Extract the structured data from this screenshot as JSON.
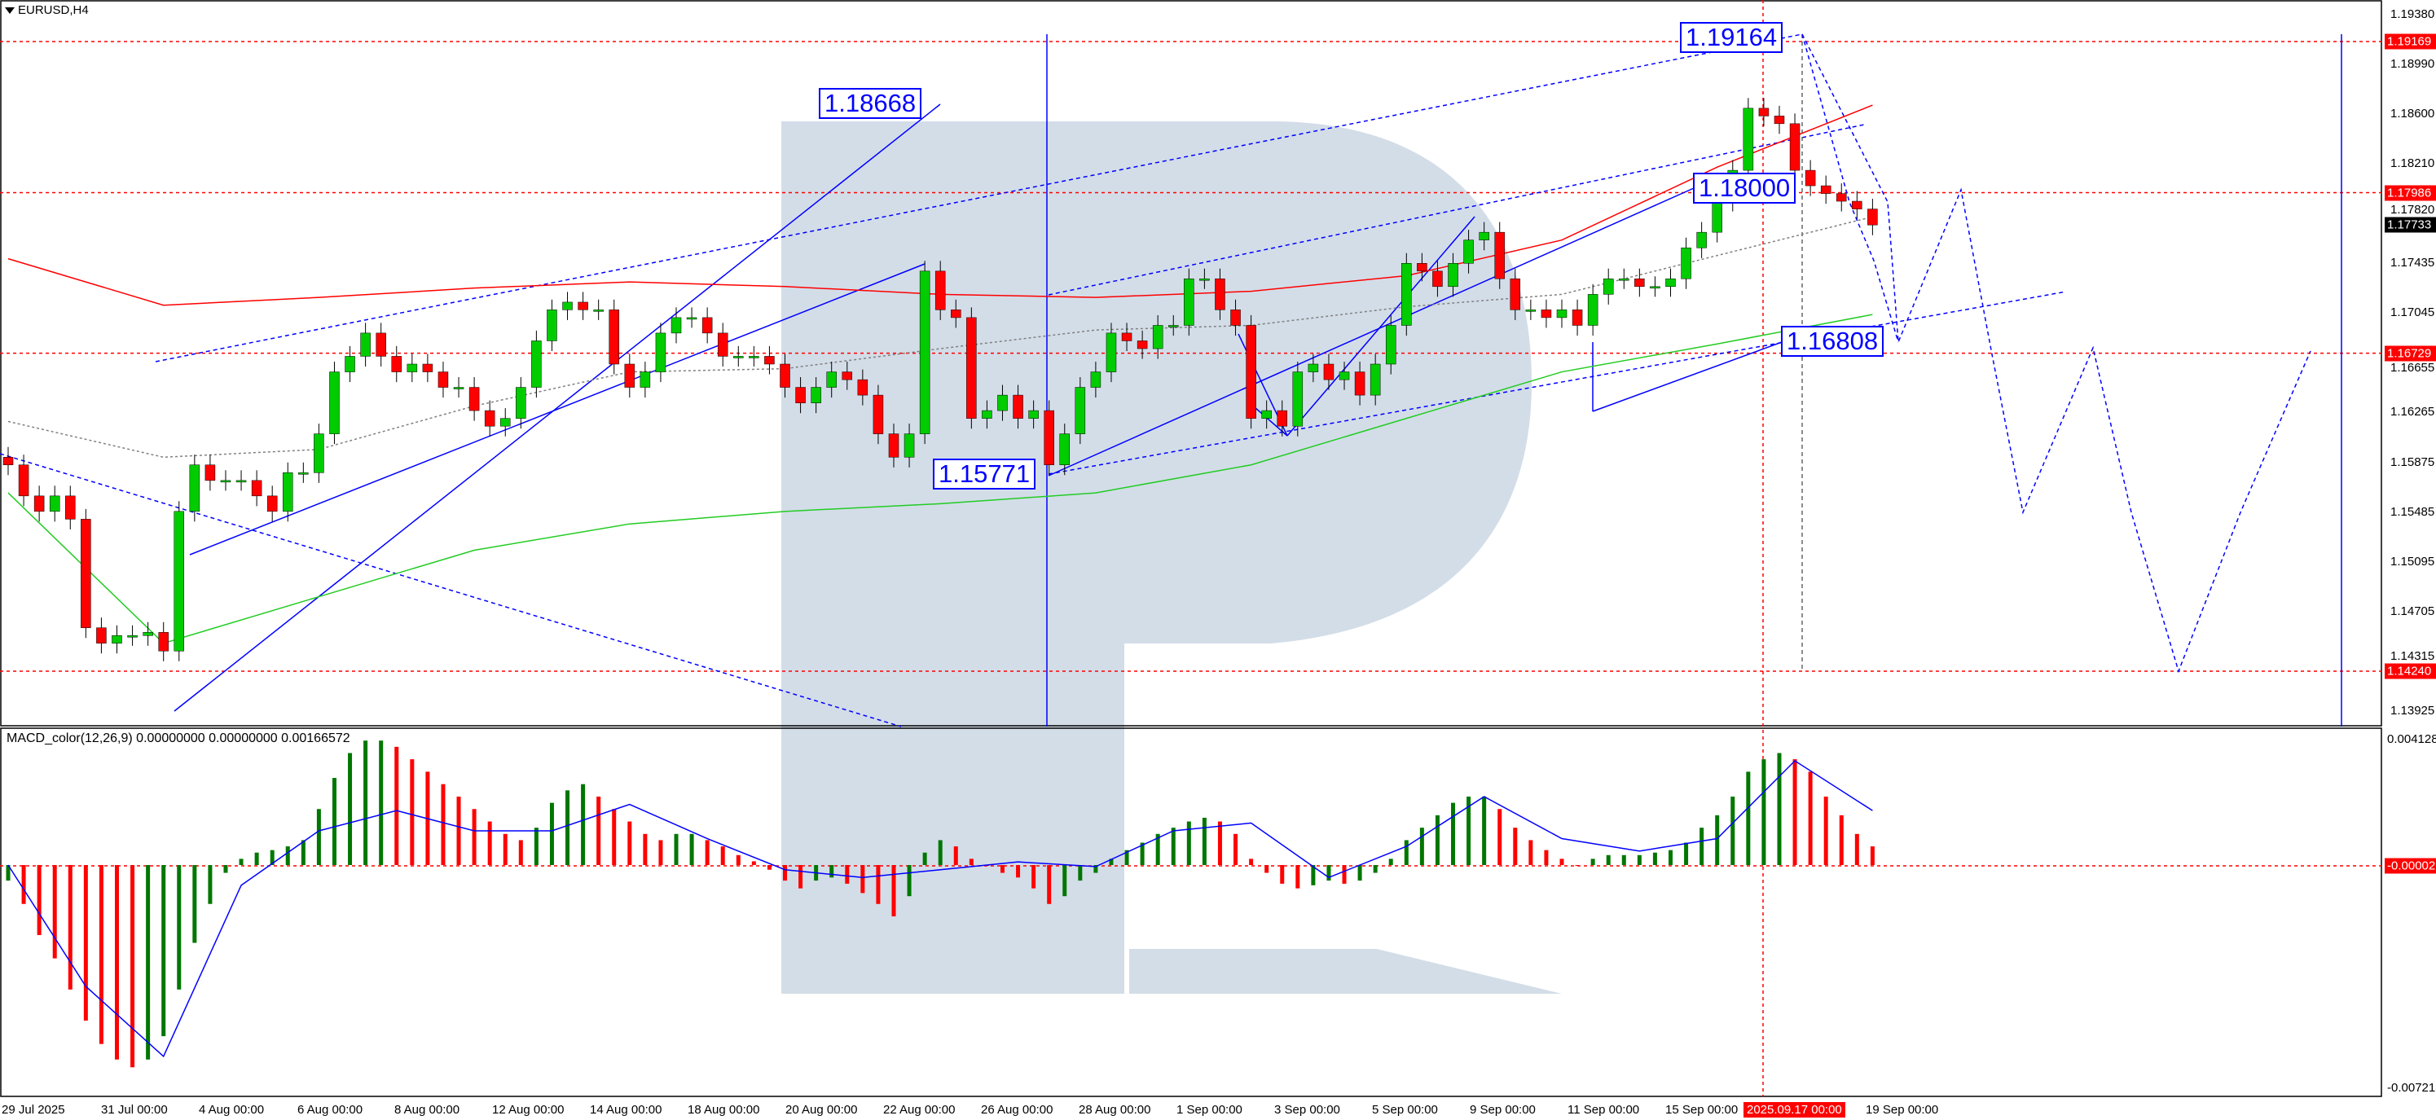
{
  "window": {
    "symbol_title": "EURUSD,H4"
  },
  "indicator": {
    "macd_title": "MACD_color(12,26,9) 0.00000000 0.00000000 0.00166572"
  },
  "colors": {
    "bull": "#00cc00",
    "bear": "#ff0000",
    "ma_slow": "#ff0000",
    "ma_fast": "#22cc22",
    "ma_mid": "#808080",
    "analysis": "#0000ff",
    "level": "#ff0000",
    "watermark": "#d3dde8",
    "macd_up": "#007700",
    "macd_down": "#ff0000",
    "signal": "#0000ff"
  },
  "chart_data": {
    "type": "candlestick",
    "symbol": "EURUSD",
    "timeframe": "H4",
    "ylim": [
      1.13925,
      1.1938
    ],
    "y_ticks": [
      "1.19380",
      "1.18990",
      "1.18600",
      "1.18210",
      "1.17820",
      "1.17435",
      "1.17045",
      "1.16655",
      "1.16265",
      "1.15875",
      "1.15485",
      "1.15095",
      "1.14705",
      "1.14315",
      "1.13925"
    ],
    "x_ticks": [
      "29 Jul 2025",
      "31 Jul 00:00",
      "4 Aug 00:00",
      "6 Aug 00:00",
      "8 Aug 00:00",
      "12 Aug 00:00",
      "14 Aug 00:00",
      "18 Aug 00:00",
      "20 Aug 00:00",
      "22 Aug 00:00",
      "26 Aug 00:00",
      "28 Aug 00:00",
      "1 Sep 00:00",
      "3 Sep 00:00",
      "5 Sep 00:00",
      "9 Sep 00:00",
      "11 Sep 00:00",
      "15 Sep 00:00",
      "19 Sep 00:00"
    ],
    "crosshair_time": "2025.09.17 00:00",
    "current_price": "1.17733",
    "levels": [
      "1.19169",
      "1.17986",
      "1.16729",
      "1.14240"
    ],
    "annotations": [
      "1.18668",
      "1.19164",
      "1.18000",
      "1.16808",
      "1.15771"
    ],
    "closes": [
      1.15855,
      1.15612,
      1.15491,
      1.15612,
      1.1543,
      1.1458,
      1.14459,
      1.14519,
      1.14519,
      1.14544,
      1.14398,
      1.15491,
      1.15855,
      1.15733,
      1.15733,
      1.15733,
      1.15612,
      1.15491,
      1.15794,
      1.15794,
      1.16098,
      1.16583,
      1.16705,
      1.16887,
      1.16705,
      1.16583,
      1.16644,
      1.16583,
      1.16462,
      1.16462,
      1.1628,
      1.16158,
      1.16219,
      1.16462,
      1.16826,
      1.17069,
      1.17129,
      1.17069,
      1.17069,
      1.16644,
      1.16462,
      1.16583,
      1.16887,
      1.17008,
      1.17008,
      1.16887,
      1.16705,
      1.16705,
      1.16705,
      1.16644,
      1.16462,
      1.1634,
      1.16462,
      1.16583,
      1.16522,
      1.16401,
      1.16098,
      1.15915,
      1.16098,
      1.17372,
      1.17069,
      1.17008,
      1.16219,
      1.1628,
      1.16401,
      1.16219,
      1.1628,
      1.15855,
      1.16098,
      1.16462,
      1.16583,
      1.16887,
      1.16826,
      1.16765,
      1.16947,
      1.16947,
      1.17312,
      1.17312,
      1.17069,
      1.16947,
      1.16219,
      1.1628,
      1.16158,
      1.16583,
      1.16644,
      1.16522,
      1.16583,
      1.16401,
      1.16644,
      1.16947,
      1.17433,
      1.17372,
      1.17251,
      1.17433,
      1.17615,
      1.17676,
      1.17312,
      1.17069,
      1.17069,
      1.17008,
      1.17069,
      1.16947,
      1.1719,
      1.17312,
      1.17312,
      1.17251,
      1.17251,
      1.17312,
      1.17554,
      1.17676,
      1.17919,
      1.18161,
      1.18647,
      1.18586,
      1.18526,
      1.18161,
      1.1804,
      1.17979,
      1.17919,
      1.17858,
      1.17733
    ],
    "ma_slow": [
      1.17469,
      1.17105,
      1.17166,
      1.17239,
      1.17287,
      1.17251,
      1.1719,
      1.17166,
      1.17214,
      1.17336,
      1.17615,
      1.18186,
      1.18671
    ],
    "ma_fast": [
      1.15636,
      1.14459,
      1.14823,
      1.15187,
      1.15393,
      1.15491,
      1.15551,
      1.15636,
      1.15855,
      1.16219,
      1.16583,
      1.16802,
      1.17032
    ],
    "ma_mid": [
      1.16195,
      1.15915,
      1.15976,
      1.16316,
      1.16583,
      1.16608,
      1.16765,
      1.16911,
      1.16947,
      1.17093,
      1.1719,
      1.17494,
      1.17797
    ],
    "macd": {
      "ylim": [
        -0.0072135,
        0.0041284
      ],
      "y_ticks": [
        "0.0041284",
        "-0.000026",
        "-0.0072135"
      ],
      "histogram": [
        -0.0005,
        -0.00125,
        -0.00225,
        -0.003,
        -0.004,
        -0.005,
        -0.00575,
        -0.00625,
        -0.0065,
        -0.00625,
        -0.0055,
        -0.004,
        -0.0025,
        -0.00125,
        -0.00025,
        0.0002,
        0.0004,
        0.00048,
        0.0006,
        0.0008,
        0.0018,
        0.0028,
        0.0036,
        0.004,
        0.004,
        0.0038,
        0.0034,
        0.003,
        0.0026,
        0.0022,
        0.0018,
        0.0014,
        0.001,
        0.0008,
        0.0012,
        0.002,
        0.0024,
        0.0026,
        0.0022,
        0.0018,
        0.0014,
        0.001,
        0.0008,
        0.001,
        0.001,
        0.0008,
        0.0006,
        0.00032,
        0.00012,
        -0.00015,
        -0.0005,
        -0.00075,
        -0.0005,
        -0.0004,
        -0.0006,
        -0.0009,
        -0.00125,
        -0.00165,
        -0.001,
        0.0004,
        0.0008,
        0.0006,
        0.0002,
        0,
        -0.00025,
        -0.0004,
        -0.00075,
        -0.00125,
        -0.001,
        -0.0005,
        -0.00025,
        0.0002,
        0.00048,
        0.00072,
        0.001,
        0.0012,
        0.0014,
        0.00152,
        0.0014,
        0.001,
        0.0002,
        -0.00025,
        -0.0006,
        -0.00075,
        -0.00065,
        -0.0005,
        -0.0006,
        -0.0005,
        -0.00025,
        0.0002,
        0.0008,
        0.0012,
        0.0016,
        0.002,
        0.0022,
        0.0022,
        0.0018,
        0.0012,
        0.0008,
        0.00048,
        0.0002,
        0,
        0.0002,
        0.00032,
        0.00032,
        0.00032,
        0.0004,
        0.00048,
        0.00072,
        0.0012,
        0.0016,
        0.0022,
        0.003,
        0.0034,
        0.0036,
        0.0034,
        0.003,
        0.0022,
        0.0016,
        0.001,
        0.0006
      ],
      "signal": [
        0,
        -0.0039,
        -0.00615,
        -0.00065,
        0.0011,
        0.00175,
        0.0011,
        0.0011,
        0.00195,
        0.00085,
        -0.00015,
        -0.0004,
        -0.00015,
        0.0001,
        -5e-05,
        0.0011,
        0.00135,
        -0.0004,
        0.0006,
        0.0022,
        0.00085,
        0.00045,
        0.00085,
        0.00335,
        0.00175
      ]
    }
  }
}
